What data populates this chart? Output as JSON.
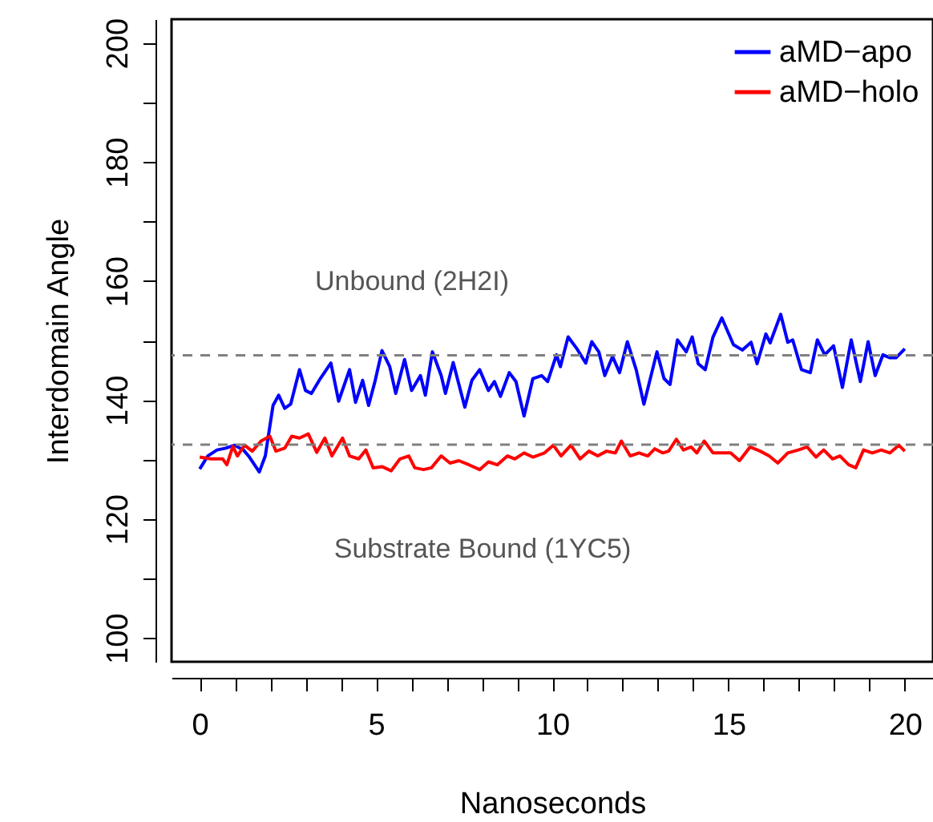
{
  "chart_data": {
    "type": "line",
    "xlabel": "Nanoseconds",
    "ylabel": "Interdomain Angle",
    "xlim": [
      -0.8,
      20.8
    ],
    "ylim": [
      96,
      204
    ],
    "xticks": [
      0,
      {
        "value": 1,
        "label": null
      },
      {
        "value": 2,
        "label": null
      },
      {
        "value": 3,
        "label": null
      },
      {
        "value": 4,
        "label": null
      },
      5,
      {
        "value": 6,
        "label": null
      },
      {
        "value": 7,
        "label": null
      },
      {
        "value": 8,
        "label": null
      },
      {
        "value": 9,
        "label": null
      },
      10,
      {
        "value": 11,
        "label": null
      },
      {
        "value": 12,
        "label": null
      },
      {
        "value": 13,
        "label": null
      },
      {
        "value": 14,
        "label": null
      },
      15,
      {
        "value": 16,
        "label": null
      },
      {
        "value": 17,
        "label": null
      },
      {
        "value": 18,
        "label": null
      },
      {
        "value": 19,
        "label": null
      },
      20
    ],
    "yticks": [
      100,
      {
        "value": 110,
        "label": null
      },
      120,
      {
        "value": 130,
        "label": null
      },
      140,
      {
        "value": 150,
        "label": null
      },
      160,
      {
        "value": 170,
        "label": null
      },
      180,
      {
        "value": 190,
        "label": null
      },
      200
    ],
    "grid": false,
    "legend": "top right",
    "line_style": "solid",
    "series": [
      {
        "name": "aMD−apo",
        "color": "#0000ff",
        "x": [
          0,
          0.23,
          0.49,
          0.74,
          0.99,
          1.24,
          1.41,
          1.69,
          1.86,
          2.08,
          2.24,
          2.41,
          2.58,
          2.83,
          3.0,
          3.17,
          3.42,
          3.72,
          3.94,
          4.25,
          4.42,
          4.62,
          4.79,
          4.97,
          5.17,
          5.39,
          5.56,
          5.81,
          6.01,
          6.26,
          6.4,
          6.6,
          6.85,
          6.97,
          7.19,
          7.52,
          7.72,
          7.94,
          8.19,
          8.36,
          8.53,
          8.78,
          8.97,
          9.2,
          9.45,
          9.7,
          9.87,
          10.12,
          10.23,
          10.45,
          10.7,
          10.95,
          11.12,
          11.32,
          11.49,
          11.71,
          11.91,
          12.13,
          12.38,
          12.6,
          12.97,
          13.17,
          13.34,
          13.55,
          13.8,
          13.97,
          14.14,
          14.34,
          14.56,
          14.81,
          15.14,
          15.39,
          15.64,
          15.81,
          16.06,
          16.18,
          16.48,
          16.68,
          16.82,
          17.07,
          17.32,
          17.52,
          17.73,
          17.98,
          18.23,
          18.48,
          18.74,
          18.96,
          19.16,
          19.38,
          19.58,
          19.75,
          20.0
        ],
        "values": [
          128.4,
          130.6,
          131.6,
          131.9,
          132.4,
          131.6,
          130.4,
          127.9,
          130.6,
          139.1,
          140.8,
          138.6,
          139.3,
          145.1,
          141.6,
          141.1,
          143.6,
          146.2,
          139.8,
          145.1,
          139.6,
          143.3,
          139.1,
          143.1,
          148.3,
          145.6,
          141.1,
          146.8,
          141.6,
          144.1,
          140.8,
          148.1,
          144.1,
          141.1,
          146.3,
          138.8,
          143.3,
          145.1,
          141.6,
          143.1,
          140.6,
          144.6,
          143.1,
          137.3,
          143.6,
          144.1,
          143.1,
          147.6,
          145.6,
          150.6,
          148.6,
          146.2,
          149.8,
          148.1,
          144.1,
          147.3,
          144.6,
          149.8,
          145.1,
          139.3,
          148.1,
          143.6,
          142.6,
          150.1,
          148.1,
          150.6,
          146.1,
          145.1,
          150.6,
          153.8,
          149.3,
          148.4,
          149.7,
          146.1,
          151.1,
          149.6,
          154.4,
          149.7,
          150.1,
          145.1,
          144.6,
          150.1,
          147.6,
          149.1,
          142.1,
          150.1,
          143.1,
          149.8,
          144.1,
          147.6,
          147.1,
          147.1,
          148.6
        ]
      },
      {
        "name": "aMD−holo",
        "color": "#ff0000",
        "x": [
          0,
          0.32,
          0.65,
          0.77,
          0.94,
          1.07,
          1.27,
          1.49,
          1.74,
          1.99,
          2.16,
          2.41,
          2.61,
          2.83,
          3.08,
          3.32,
          3.55,
          3.75,
          4.05,
          4.25,
          4.51,
          4.71,
          4.92,
          5.17,
          5.43,
          5.68,
          5.93,
          6.1,
          6.35,
          6.57,
          6.85,
          7.1,
          7.35,
          7.64,
          7.94,
          8.19,
          8.44,
          8.73,
          8.94,
          9.2,
          9.45,
          9.78,
          10.03,
          10.25,
          10.53,
          10.79,
          11.04,
          11.29,
          11.54,
          11.79,
          11.96,
          12.21,
          12.46,
          12.71,
          12.91,
          13.13,
          13.3,
          13.52,
          13.72,
          13.94,
          14.1,
          14.31,
          14.56,
          14.81,
          15.06,
          15.31,
          15.61,
          15.9,
          16.15,
          16.4,
          16.68,
          16.98,
          17.23,
          17.48,
          17.7,
          17.95,
          18.16,
          18.41,
          18.61,
          18.83,
          19.08,
          19.33,
          19.58,
          19.83,
          20.0
        ],
        "values": [
          130.4,
          130.1,
          130.1,
          129.1,
          132.2,
          130.6,
          132.4,
          131.4,
          133.1,
          133.9,
          131.4,
          131.9,
          133.9,
          133.6,
          134.3,
          131.2,
          133.6,
          130.6,
          133.6,
          130.6,
          130.1,
          131.6,
          128.6,
          128.8,
          128.1,
          130.1,
          130.6,
          128.6,
          128.3,
          128.6,
          130.6,
          129.4,
          129.8,
          129.1,
          128.3,
          129.6,
          129.1,
          130.6,
          130.1,
          131.1,
          130.4,
          131.1,
          132.4,
          130.6,
          132.4,
          130.1,
          131.4,
          130.6,
          131.4,
          131.1,
          133.1,
          130.6,
          131.1,
          130.6,
          131.8,
          131.1,
          131.4,
          133.4,
          131.6,
          132.1,
          131.1,
          133.1,
          131.1,
          131.1,
          131.1,
          129.8,
          132.1,
          131.4,
          130.6,
          129.4,
          131.1,
          131.6,
          132.1,
          130.4,
          131.6,
          130.1,
          130.6,
          129.1,
          128.6,
          131.6,
          131.1,
          131.6,
          131.1,
          132.4,
          131.4
        ]
      }
    ],
    "ref_lines": [
      {
        "axis": "y",
        "value": 147.5,
        "color": "#808080",
        "line_style": "dashed"
      },
      {
        "axis": "y",
        "value": 132.5,
        "color": "#808080",
        "line_style": "dashed"
      }
    ],
    "annotations": [
      "Unbound (2H2I)",
      "Substrate Bound (1YC5)"
    ]
  }
}
